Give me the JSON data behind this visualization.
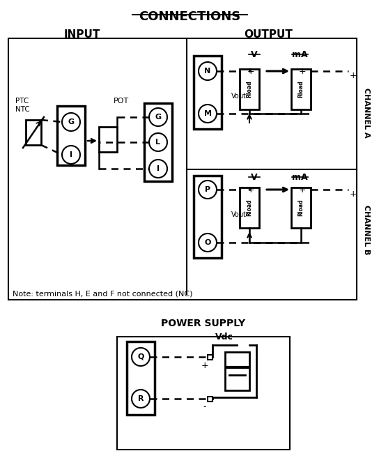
{
  "title": "CONNECTIONS",
  "input_label": "INPUT",
  "output_label": "OUTPUT",
  "power_supply_label": "POWER SUPPLY",
  "channel_a_label": "CHANNEL A",
  "channel_b_label": "CHANNEL B",
  "note_text": "Note: terminals H, E and F not connected (NC)",
  "bg_color": "#ffffff",
  "line_color": "#000000"
}
